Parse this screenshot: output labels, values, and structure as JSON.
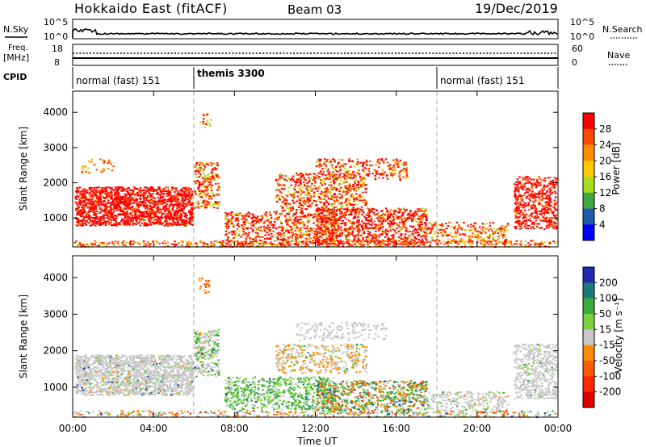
{
  "header": {
    "title": "Hokkaido East (fitACF)",
    "beam": "Beam 03",
    "date": "19/Dec/2019"
  },
  "panels": {
    "nsky_label": "N.Sky",
    "nsky_ticks": [
      "10^5",
      "10^0"
    ],
    "nsearch_label": "N.Search",
    "nsearch_ticks": [
      "10^5",
      "10^0"
    ],
    "freq_label_1": "Freq.",
    "freq_label_2": "[MHz]",
    "freq_ticks": [
      "18",
      "8"
    ],
    "nave_label": "Nave",
    "nave_ticks": [
      "60",
      "0"
    ],
    "cpid_label": "CPID",
    "cpid_segments": [
      {
        "label": "normal (fast) 151",
        "start_h": 0
      },
      {
        "label": "themis 3300",
        "start_h": 6
      },
      {
        "label": "normal (fast) 151",
        "start_h": 18
      }
    ]
  },
  "chart_data": [
    {
      "type": "heatmap",
      "name": "power",
      "ylabel": "Slant Range [km]",
      "yticks": [
        "4000",
        "3000",
        "2000",
        "1000"
      ],
      "ytick_values": [
        4000,
        3000,
        2000,
        1000
      ],
      "ylim": [
        180,
        4600
      ],
      "xlim_h": [
        0,
        24
      ],
      "colorbar": {
        "label": "Power [dB]",
        "ticks": [
          "28",
          "24",
          "20",
          "16",
          "12",
          "8",
          "4"
        ],
        "colors": [
          "#ff0000",
          "#ff4a00",
          "#ff8c00",
          "#ffc800",
          "#aadc1e",
          "#3caa3c",
          "#1e5aaa",
          "#0000ff"
        ]
      }
    },
    {
      "type": "heatmap",
      "name": "velocity",
      "ylabel": "Slant Range [km]",
      "yticks": [
        "4000",
        "3000",
        "2000",
        "1000"
      ],
      "ytick_values": [
        4000,
        3000,
        2000,
        1000
      ],
      "ylim": [
        180,
        4600
      ],
      "xlim_h": [
        0,
        24
      ],
      "colorbar": {
        "label": "Velocity [m s⁻¹]",
        "ticks": [
          "200",
          "100",
          "50",
          "15",
          "-15",
          "-50",
          "-100",
          "-200"
        ],
        "colors": [
          "#1e28b4",
          "#1e7878",
          "#3caa3c",
          "#78d23c",
          "#c8c8c8",
          "#ff8c00",
          "#ff5a00",
          "#ff2800",
          "#e10000"
        ]
      }
    }
  ],
  "xaxis": {
    "label": "Time UT",
    "ticks": [
      "00:00",
      "04:00",
      "08:00",
      "12:00",
      "16:00",
      "20:00",
      "00:00"
    ],
    "tick_hours": [
      0,
      4,
      8,
      12,
      16,
      20,
      24
    ]
  }
}
